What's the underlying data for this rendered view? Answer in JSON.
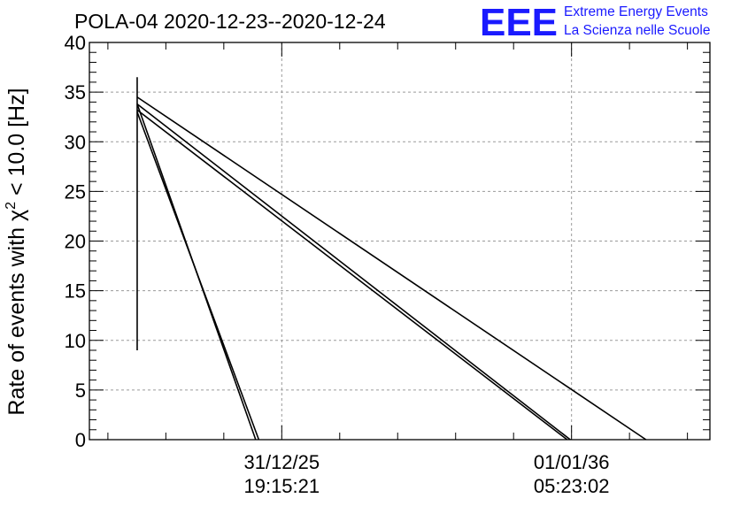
{
  "chart_data": {
    "type": "line",
    "title": "POLA-04 2020-12-23--2020-12-24",
    "logo": {
      "mark": "EEE",
      "line1": "Extreme Energy Events",
      "line2": "La Scienza nelle Scuole",
      "color": "#1a1aff"
    },
    "ylabel_prefix": "Rate of events with ",
    "ylabel_symbol": "χ",
    "ylabel_sup": "2",
    "ylabel_suffix": " < 10.0 [Hz]",
    "ylim": [
      0,
      40
    ],
    "yticks": [
      0,
      5,
      10,
      15,
      20,
      25,
      30,
      35,
      40
    ],
    "xlim": [
      0,
      1
    ],
    "xticks": [
      {
        "pos": 0.31,
        "line1": "31/12/25",
        "line2": "19:15:21"
      },
      {
        "pos": 0.777,
        "line1": "01/01/36",
        "line2": "05:23:02"
      }
    ],
    "grid": true,
    "segments": [
      {
        "x": [
          0.077,
          0.077
        ],
        "y": [
          9,
          36.5
        ]
      },
      {
        "x": [
          0.077,
          0.897
        ],
        "y": [
          34.5,
          0
        ]
      },
      {
        "x": [
          0.077,
          0.775
        ],
        "y": [
          33.8,
          0
        ]
      },
      {
        "x": [
          0.077,
          0.77
        ],
        "y": [
          33.2,
          0
        ]
      },
      {
        "x": [
          0.077,
          0.268
        ],
        "y": [
          33.8,
          0
        ]
      },
      {
        "x": [
          0.077,
          0.273
        ],
        "y": [
          33.0,
          0
        ]
      }
    ]
  }
}
